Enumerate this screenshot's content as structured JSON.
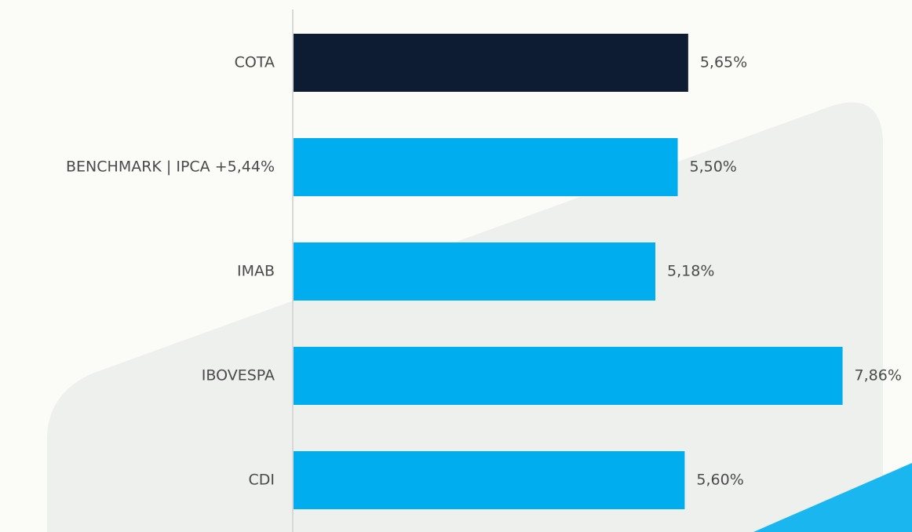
{
  "chart_data": {
    "type": "bar",
    "orientation": "horizontal",
    "categories": [
      "COTA",
      "BENCHMARK | IPCA +5,44%",
      "IMAB",
      "IBOVESPA",
      "CDI"
    ],
    "values": [
      5.65,
      5.5,
      5.18,
      7.86,
      5.6
    ],
    "value_labels": [
      "5,65%",
      "5,50%",
      "5,18%",
      "7,86%",
      "5,60%"
    ],
    "colors": [
      "#0d1b33",
      "#00aeef",
      "#00aeef",
      "#00aeef",
      "#00aeef"
    ]
  }
}
